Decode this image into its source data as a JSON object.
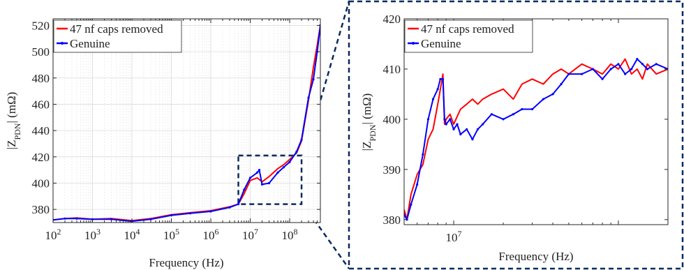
{
  "chart_data": [
    {
      "type": "line",
      "xscale": "log",
      "xlabel": "Frequency (Hz)",
      "ylabel": "|Z",
      "ylabel_sub": "PDN",
      "ylabel_tail": "| (mΩ)",
      "xlim": [
        100,
        600000000
      ],
      "ylim": [
        370,
        525
      ],
      "xticks": [
        {
          "value": 100,
          "base": "10",
          "exp": "2"
        },
        {
          "value": 1000,
          "base": "10",
          "exp": "3"
        },
        {
          "value": 10000,
          "base": "10",
          "exp": "4"
        },
        {
          "value": 100000,
          "base": "10",
          "exp": "5"
        },
        {
          "value": 1000000,
          "base": "10",
          "exp": "6"
        },
        {
          "value": 10000000,
          "base": "10",
          "exp": "7"
        },
        {
          "value": 100000000,
          "base": "10",
          "exp": "8"
        }
      ],
      "yticks": [
        "380",
        "400",
        "420",
        "440",
        "460",
        "480",
        "500",
        "520"
      ],
      "grid": true,
      "legend_position": "top-left",
      "zoom_box": {
        "x": [
          5000000,
          200000000
        ],
        "y": [
          384,
          421
        ]
      },
      "series": [
        {
          "name": "47 nf caps removed",
          "color": "#ff0000",
          "x": [
            100,
            200,
            400,
            1000,
            3000,
            10000,
            30000,
            100000,
            300000,
            1000000,
            3000000,
            5000000,
            7000000,
            10000000,
            15000000,
            20000000,
            30000000,
            50000000,
            70000000,
            100000000,
            150000000,
            200000000,
            300000000,
            400000000,
            500000000,
            600000000
          ],
          "y": [
            372,
            373,
            373.5,
            372.5,
            373,
            371.5,
            373,
            376,
            377.5,
            379,
            382,
            384,
            392,
            402,
            404,
            401,
            405,
            411,
            414,
            418,
            423,
            432,
            463,
            488,
            505,
            520
          ]
        },
        {
          "name": "Genuine",
          "color": "#0000ff",
          "x": [
            100,
            200,
            400,
            1000,
            3000,
            10000,
            30000,
            100000,
            300000,
            1000000,
            3000000,
            5000000,
            7000000,
            10000000,
            15000000,
            17000000,
            20000000,
            30000000,
            50000000,
            70000000,
            100000000,
            150000000,
            200000000,
            300000000,
            400000000,
            500000000,
            600000000
          ],
          "y": [
            372,
            373,
            373,
            372.5,
            372.5,
            371,
            372.5,
            375.5,
            377,
            378.5,
            381.5,
            384,
            395,
            404,
            408,
            410,
            399,
            400,
            408,
            412,
            416,
            424,
            433,
            465,
            479,
            500,
            520
          ]
        }
      ]
    },
    {
      "type": "line",
      "xscale": "log",
      "xlabel": "Frequency (Hz)",
      "ylabel": "|Z",
      "ylabel_sub": "PDN",
      "ylabel_tail": "| (mΩ)",
      "xlim": [
        5000000,
        200000000
      ],
      "ylim": [
        379,
        420
      ],
      "xticks": [
        {
          "value": 10000000,
          "base": "10",
          "exp": "7"
        }
      ],
      "yticks": [
        "380",
        "390",
        "400",
        "410",
        "420"
      ],
      "grid": false,
      "legend_position": "top-left",
      "series": [
        {
          "name": "47 nf caps removed",
          "color": "#ff0000",
          "x": [
            5000000,
            5200000,
            5500000,
            6000000,
            6500000,
            7000000,
            7500000,
            8000000,
            8400000,
            8600000,
            8800000,
            9000000,
            9500000,
            10000000,
            11000000,
            12000000,
            13000000,
            14000000,
            15000000,
            17000000,
            20000000,
            23000000,
            26000000,
            30000000,
            35000000,
            40000000,
            45000000,
            50000000,
            60000000,
            70000000,
            80000000,
            90000000,
            100000000,
            110000000,
            120000000,
            130000000,
            140000000,
            150000000,
            170000000,
            200000000
          ],
          "y": [
            382,
            380,
            385,
            389,
            391,
            396,
            398,
            403,
            407,
            409,
            399,
            400,
            401,
            399,
            402,
            403,
            404,
            403,
            404,
            405,
            406,
            404,
            407,
            408,
            407,
            409,
            410,
            409,
            411,
            410,
            409,
            411,
            410,
            412,
            409,
            410,
            408,
            411,
            409,
            410
          ]
        },
        {
          "name": "Genuine",
          "color": "#0000ff",
          "x": [
            5000000,
            5200000,
            5500000,
            6000000,
            6500000,
            7000000,
            7500000,
            8000000,
            8300000,
            8600000,
            8800000,
            9000000,
            9500000,
            10000000,
            10500000,
            11000000,
            12000000,
            13000000,
            14000000,
            15000000,
            17000000,
            20000000,
            23000000,
            26000000,
            30000000,
            35000000,
            40000000,
            45000000,
            50000000,
            60000000,
            70000000,
            80000000,
            90000000,
            100000000,
            110000000,
            120000000,
            130000000,
            140000000,
            150000000,
            170000000,
            200000000
          ],
          "y": [
            381,
            380,
            383,
            387,
            393,
            400,
            404,
            406,
            408,
            408,
            400,
            399,
            400,
            398,
            399,
            397,
            398,
            396,
            398,
            399,
            401,
            400,
            401,
            402,
            402,
            404,
            405,
            407,
            409,
            409,
            410,
            408,
            410,
            411,
            409,
            410,
            412,
            411,
            410,
            411,
            410
          ]
        }
      ]
    }
  ]
}
